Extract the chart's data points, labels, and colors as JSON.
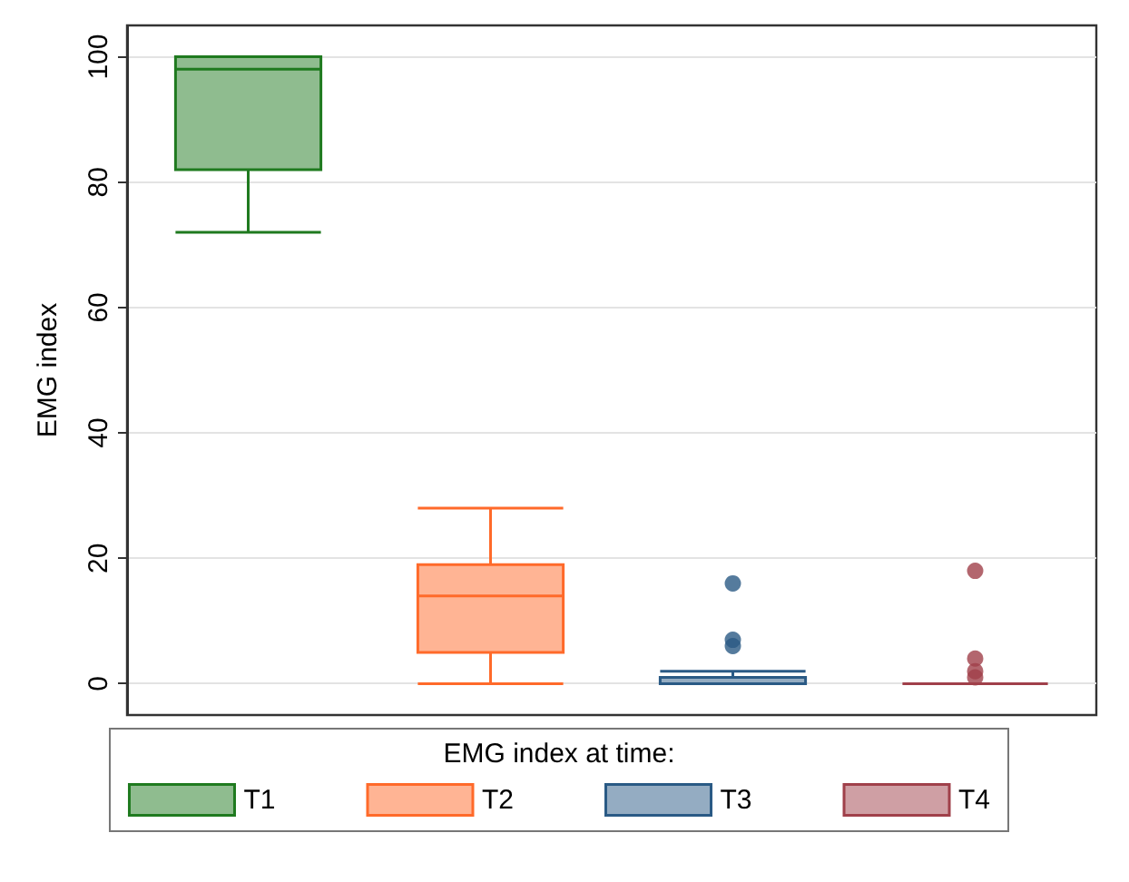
{
  "chart_data": {
    "type": "box",
    "ylabel": "EMG index",
    "legend_title": "EMG index at time:",
    "categories": [
      null,
      null,
      null,
      null
    ],
    "ylim": [
      -5,
      105
    ],
    "yticks": [
      0,
      20,
      40,
      60,
      80,
      100
    ],
    "grid": "y",
    "legend": "bottom",
    "tick_labels": "y",
    "series": [
      {
        "name": "T1",
        "color": "#1f7a1f",
        "boxes": [
          {
            "low": 72,
            "q1": 82,
            "median": 98,
            "q3": 100,
            "high": 100
          },
          null,
          null,
          null
        ]
      },
      {
        "name": "T2",
        "color": "#ff6a2a",
        "boxes": [
          null,
          {
            "low": 0,
            "q1": 5,
            "median": 14,
            "q3": 19,
            "high": 28
          },
          null,
          null
        ]
      },
      {
        "name": "T3",
        "color": "#2a5a85",
        "boxes": [
          null,
          null,
          {
            "low": 0,
            "q1": 0,
            "median": 0,
            "q3": 1,
            "high": 2,
            "outliers": [
              16,
              7,
              6
            ]
          },
          null
        ]
      },
      {
        "name": "T4",
        "color": "#a0404a",
        "boxes": [
          null,
          null,
          null,
          {
            "low": 0,
            "q1": 0,
            "median": 0,
            "q3": 0,
            "high": 0,
            "outliers": [
              18,
              4,
              2,
              1
            ]
          }
        ]
      }
    ]
  }
}
